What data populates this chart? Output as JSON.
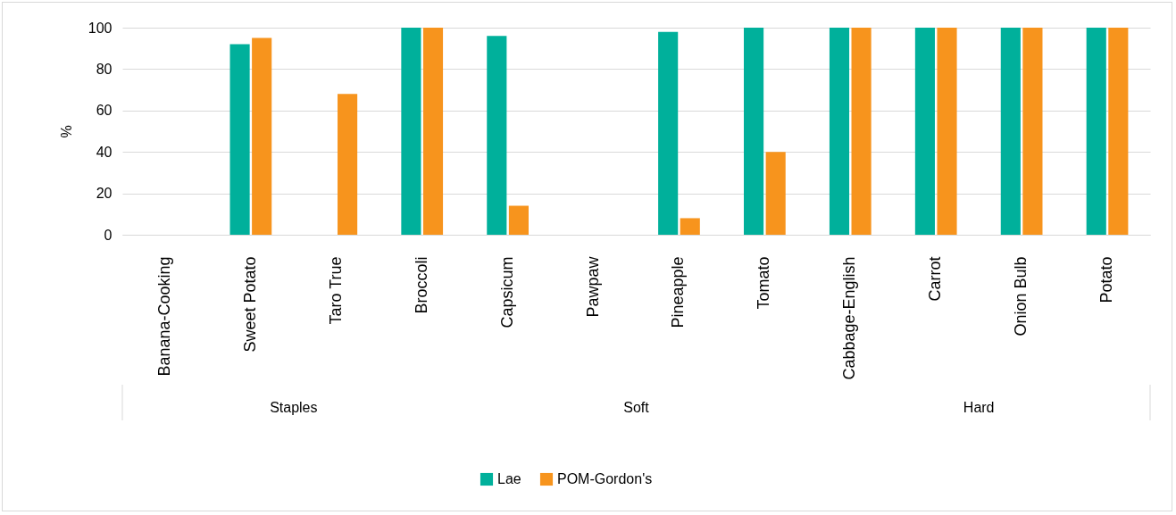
{
  "chart_data": {
    "type": "bar",
    "ylabel": "%",
    "categories": [
      "Banana-Cooking",
      "Sweet Potato",
      "Taro True",
      "Broccoli",
      "Capsicum",
      "Pawpaw",
      "Pineapple",
      "Tomato",
      "Cabbage-English",
      "Carrot",
      "Onion Bulb",
      "Potato"
    ],
    "series": [
      {
        "name": "Lae",
        "color": "#00b09b",
        "values": [
          null,
          92,
          null,
          100,
          96,
          null,
          98,
          100,
          100,
          100,
          100,
          100
        ]
      },
      {
        "name": "POM-Gordon's",
        "color": "#f7941d",
        "values": [
          null,
          95,
          68,
          100,
          14,
          null,
          8,
          40,
          100,
          100,
          100,
          100
        ]
      }
    ],
    "ylim": [
      0,
      100
    ],
    "yticks": [
      0,
      20,
      40,
      60,
      80,
      100
    ],
    "grid": "y",
    "legend": "bottom",
    "annotations": [
      "Staples",
      "Soft",
      "Hard"
    ]
  }
}
